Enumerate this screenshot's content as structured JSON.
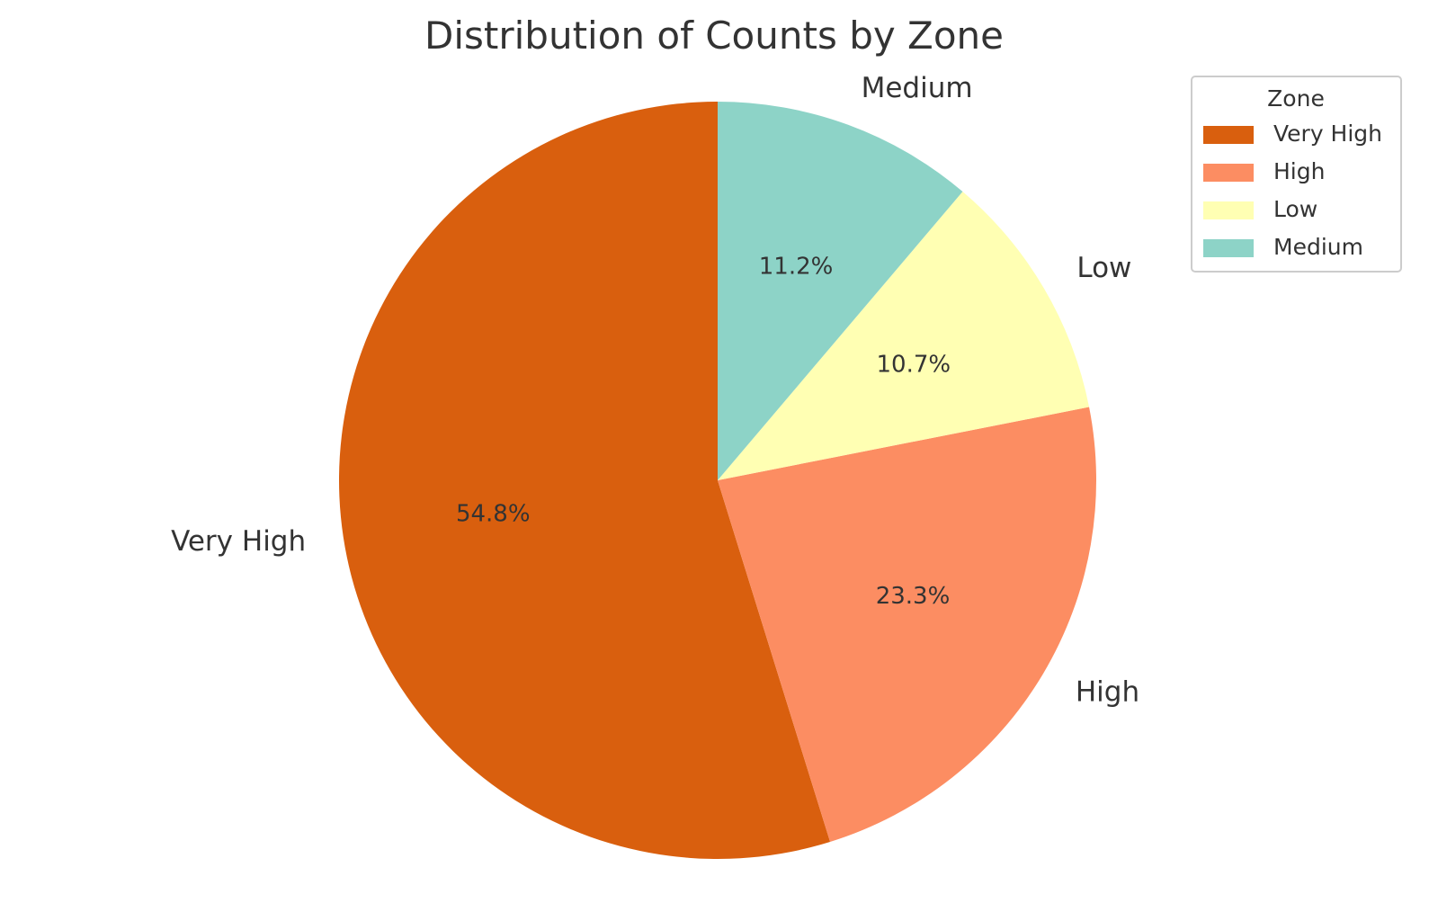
{
  "chart_data": {
    "type": "pie",
    "title": "Distribution of Counts by Zone",
    "slices": [
      {
        "label": "Very High",
        "value": 54.8,
        "pct_text": "54.8%",
        "color": "#d95f0e"
      },
      {
        "label": "High",
        "value": 23.3,
        "pct_text": "23.3%",
        "color": "#fc8d62"
      },
      {
        "label": "Low",
        "value": 10.7,
        "pct_text": "10.7%",
        "color": "#ffffb3"
      },
      {
        "label": "Medium",
        "value": 11.2,
        "pct_text": "11.2%",
        "color": "#8dd3c7"
      }
    ],
    "start_angle_deg": 90,
    "direction": "counterclockwise",
    "legend": {
      "title": "Zone",
      "placement": "top-right",
      "entries": [
        "Very High",
        "High",
        "Low",
        "Medium"
      ]
    }
  }
}
